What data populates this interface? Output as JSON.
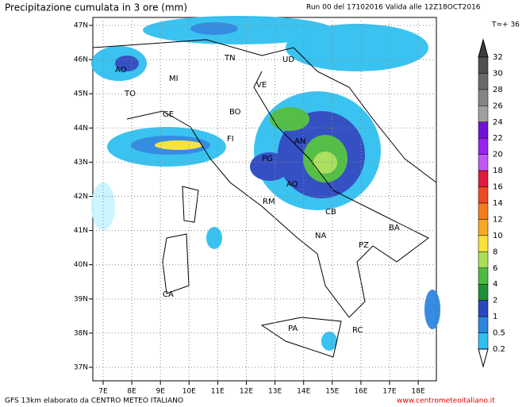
{
  "header": {
    "title": "Precipitazione cumulata in 3 ore (mm)",
    "run": "Run 00 del 17102016  Valida alle 12Z18OCT2016",
    "step": "T=+ 36"
  },
  "map": {
    "lat_labels": [
      "47N",
      "46N",
      "45N",
      "44N",
      "43N",
      "42N",
      "41N",
      "40N",
      "39N",
      "38N",
      "37N"
    ],
    "lon_labels": [
      "7E",
      "8E",
      "9E",
      "10E",
      "11E",
      "12E",
      "13E",
      "14E",
      "15E",
      "16E",
      "17E",
      "18E"
    ],
    "cities": [
      "AO",
      "MI",
      "TO",
      "TN",
      "UD",
      "VE",
      "BO",
      "GE",
      "FI",
      "AN",
      "PG",
      "AQ",
      "RM",
      "CB",
      "NA",
      "BA",
      "PZ",
      "CA",
      "PA",
      "RC"
    ]
  },
  "colorbar": {
    "labels": [
      "32",
      "30",
      "28",
      "26",
      "24",
      "22",
      "20",
      "18",
      "16",
      "14",
      "12",
      "10",
      "8",
      "6",
      "4",
      "2",
      "1",
      "0.5",
      "0.2"
    ],
    "colors": [
      "#3c3c3c",
      "#505050",
      "#6a6a6a",
      "#848484",
      "#a0a0a0",
      "#7010d8",
      "#9a22ee",
      "#c257f2",
      "#e01a3c",
      "#f04a22",
      "#f57c1e",
      "#f9a823",
      "#f7e13a",
      "#a8df58",
      "#4cbb3e",
      "#1f8f35",
      "#2b47c0",
      "#2c86e0",
      "#30c0f0",
      "#c8f4ff",
      "#ffffff"
    ]
  },
  "footer": {
    "left": "GFS 13km elaborato da CENTRO METEO ITALIANO",
    "right": "www.centrometeoitaliano.it"
  }
}
